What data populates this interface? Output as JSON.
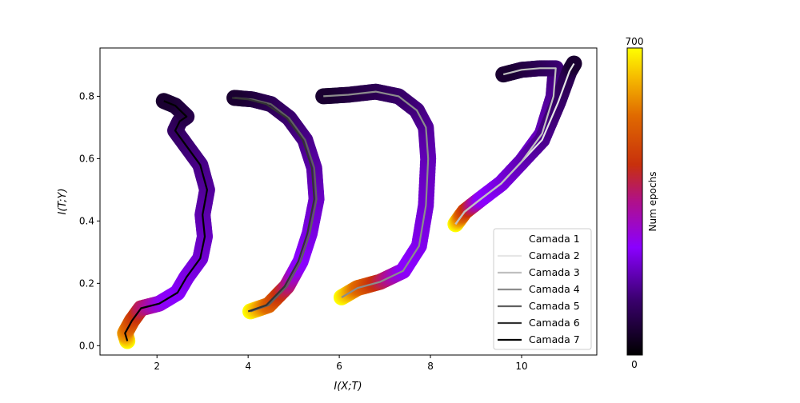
{
  "chart_data": {
    "type": "line",
    "title": "",
    "xlabel": "I(X;T)",
    "ylabel": "I(T;Y)",
    "xlim": [
      0.75,
      11.65
    ],
    "ylim": [
      -0.03,
      0.955
    ],
    "xticks": [
      2,
      4,
      6,
      8,
      10
    ],
    "yticks": [
      0.0,
      0.2,
      0.4,
      0.6,
      0.8
    ],
    "xtick_labels": [
      "2",
      "4",
      "6",
      "8",
      "10"
    ],
    "ytick_labels": [
      "0.0",
      "0.2",
      "0.4",
      "0.6",
      "0.8"
    ],
    "legend_position": "lower-right",
    "grid": false,
    "colorbar": {
      "label": "Num epochs",
      "min": 0,
      "max": 700,
      "min_label": "0",
      "max_label": "700",
      "colormap": "gnuplot"
    },
    "series": [
      {
        "name": "Camada 1",
        "color": "#ffffff",
        "points": []
      },
      {
        "name": "Camada 2",
        "color": "#e6e6e6",
        "points": [
          [
            11.15,
            0.905
          ],
          [
            11.05,
            0.88
          ],
          [
            10.8,
            0.78
          ],
          [
            10.45,
            0.66
          ],
          [
            10.0,
            0.59
          ],
          [
            9.55,
            0.52
          ],
          [
            9.1,
            0.47
          ],
          [
            8.75,
            0.43
          ],
          [
            8.55,
            0.39
          ]
        ]
      },
      {
        "name": "Camada 3",
        "color": "#c0c0c0",
        "points": [
          [
            9.6,
            0.87
          ],
          [
            10.0,
            0.885
          ],
          [
            10.4,
            0.89
          ],
          [
            10.75,
            0.89
          ],
          [
            10.7,
            0.8
          ],
          [
            10.45,
            0.68
          ],
          [
            10.0,
            0.59
          ],
          [
            9.55,
            0.52
          ],
          [
            9.1,
            0.47
          ],
          [
            8.75,
            0.43
          ],
          [
            8.55,
            0.39
          ]
        ]
      },
      {
        "name": "Camada 4",
        "color": "#8c8c8c",
        "points": [
          [
            5.65,
            0.8
          ],
          [
            6.2,
            0.805
          ],
          [
            6.8,
            0.815
          ],
          [
            7.3,
            0.8
          ],
          [
            7.7,
            0.755
          ],
          [
            7.9,
            0.7
          ],
          [
            7.95,
            0.6
          ],
          [
            7.9,
            0.45
          ],
          [
            7.75,
            0.32
          ],
          [
            7.4,
            0.24
          ],
          [
            6.9,
            0.205
          ],
          [
            6.4,
            0.185
          ],
          [
            6.05,
            0.155
          ]
        ]
      },
      {
        "name": "Camada 5",
        "color": "#606060",
        "points": [
          [
            3.7,
            0.795
          ],
          [
            4.1,
            0.79
          ],
          [
            4.5,
            0.775
          ],
          [
            4.9,
            0.73
          ],
          [
            5.25,
            0.66
          ],
          [
            5.45,
            0.57
          ],
          [
            5.5,
            0.47
          ],
          [
            5.35,
            0.36
          ],
          [
            5.15,
            0.27
          ],
          [
            4.85,
            0.19
          ],
          [
            4.45,
            0.13
          ],
          [
            4.05,
            0.11
          ]
        ]
      },
      {
        "name": "Camada 6",
        "color": "#333333",
        "points": [
          [
            3.65,
            0.795
          ],
          [
            4.0,
            0.79
          ],
          [
            4.4,
            0.775
          ],
          [
            4.85,
            0.73
          ],
          [
            5.2,
            0.66
          ],
          [
            5.4,
            0.57
          ],
          [
            5.45,
            0.47
          ],
          [
            5.3,
            0.36
          ],
          [
            5.1,
            0.27
          ],
          [
            4.8,
            0.19
          ],
          [
            4.4,
            0.13
          ],
          [
            4.0,
            0.11
          ]
        ]
      },
      {
        "name": "Camada 7",
        "color": "#000000",
        "points": [
          [
            2.15,
            0.785
          ],
          [
            2.4,
            0.77
          ],
          [
            2.65,
            0.735
          ],
          [
            2.5,
            0.72
          ],
          [
            2.4,
            0.69
          ],
          [
            2.65,
            0.64
          ],
          [
            2.95,
            0.58
          ],
          [
            3.1,
            0.5
          ],
          [
            3.0,
            0.42
          ],
          [
            3.05,
            0.35
          ],
          [
            2.95,
            0.28
          ],
          [
            2.65,
            0.22
          ],
          [
            2.45,
            0.17
          ],
          [
            2.05,
            0.135
          ],
          [
            1.65,
            0.12
          ],
          [
            1.45,
            0.08
          ],
          [
            1.3,
            0.04
          ],
          [
            1.35,
            0.015
          ]
        ]
      }
    ]
  }
}
